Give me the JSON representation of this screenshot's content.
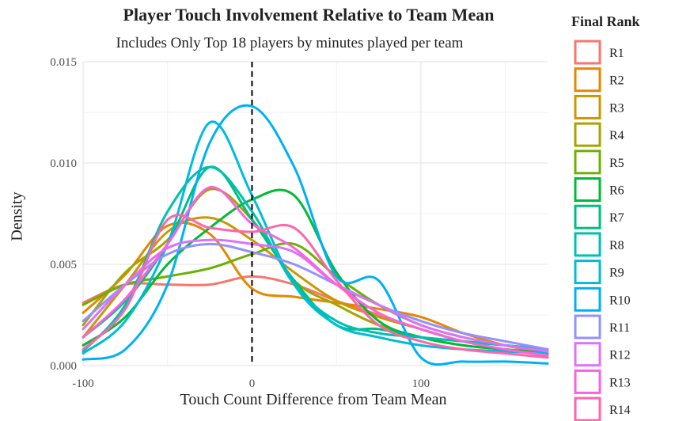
{
  "chart_data": {
    "type": "line",
    "title": "Player Touch Involvement Relative to Team Mean",
    "subtitle": "Includes Only Top 18 players by minutes played per team",
    "xlabel": "Touch Count Difference from Team Mean",
    "ylabel": "Density",
    "xlim": [
      -100,
      175
    ],
    "ylim": [
      0,
      0.015
    ],
    "xticks": [
      -100,
      0,
      100
    ],
    "xtick_labels": [
      "-100",
      "0",
      "100"
    ],
    "yticks": [
      0,
      0.005,
      0.01,
      0.015
    ],
    "ytick_labels": [
      "0.000",
      "0.005",
      "0.010",
      "0.015"
    ],
    "reference_line_x": 0,
    "grid": true,
    "legend_title": "Final Rank",
    "legend_position": "right",
    "x": [
      -100,
      -75,
      -50,
      -25,
      0,
      25,
      50,
      75,
      100,
      125,
      150,
      175
    ],
    "series": [
      {
        "name": "R1",
        "color": "#F8766D",
        "values": [
          0.0031,
          0.004,
          0.004,
          0.004,
          0.0044,
          0.004,
          0.0032,
          0.0025,
          0.0018,
          0.0012,
          0.0008,
          0.0005
        ]
      },
      {
        "name": "R2",
        "color": "#E58700",
        "values": [
          0.0026,
          0.0045,
          0.0069,
          0.0065,
          0.0038,
          0.0034,
          0.0031,
          0.0028,
          0.0024,
          0.0016,
          0.001,
          0.0006
        ]
      },
      {
        "name": "R3",
        "color": "#C99800",
        "values": [
          0.0014,
          0.004,
          0.0066,
          0.0073,
          0.0062,
          0.0046,
          0.0032,
          0.0024,
          0.0018,
          0.0012,
          0.0008,
          0.0005
        ]
      },
      {
        "name": "R4",
        "color": "#A3A500",
        "values": [
          0.002,
          0.0046,
          0.0062,
          0.0087,
          0.0072,
          0.0042,
          0.003,
          0.002,
          0.0014,
          0.001,
          0.0008,
          0.0006
        ]
      },
      {
        "name": "R5",
        "color": "#6BB100",
        "values": [
          0.003,
          0.004,
          0.0044,
          0.0048,
          0.0055,
          0.006,
          0.0044,
          0.003,
          0.002,
          0.0014,
          0.001,
          0.0007
        ]
      },
      {
        "name": "R6",
        "color": "#00BA38",
        "values": [
          0.001,
          0.0024,
          0.005,
          0.0068,
          0.0082,
          0.0084,
          0.0046,
          0.0022,
          0.0014,
          0.001,
          0.0008,
          0.0006
        ]
      },
      {
        "name": "R7",
        "color": "#00BF7D",
        "values": [
          0.0014,
          0.0032,
          0.006,
          0.0098,
          0.0072,
          0.0042,
          0.002,
          0.0018,
          0.0014,
          0.0012,
          0.001,
          0.0008
        ]
      },
      {
        "name": "R8",
        "color": "#00C0AF",
        "values": [
          0.0007,
          0.003,
          0.0076,
          0.0098,
          0.0076,
          0.004,
          0.0022,
          0.0016,
          0.0014,
          0.0012,
          0.001,
          0.0008
        ]
      },
      {
        "name": "R9",
        "color": "#00BCD8",
        "values": [
          0.0006,
          0.0022,
          0.006,
          0.012,
          0.0084,
          0.004,
          0.002,
          0.0014,
          0.001,
          0.0008,
          0.0007,
          0.0006
        ]
      },
      {
        "name": "R10",
        "color": "#00B0F6",
        "values": [
          0.0003,
          0.0008,
          0.004,
          0.011,
          0.0128,
          0.0098,
          0.0044,
          0.0042,
          0.0004,
          0.0002,
          0.0002,
          0.0001
        ]
      },
      {
        "name": "R11",
        "color": "#9590FF",
        "values": [
          0.0022,
          0.004,
          0.0055,
          0.006,
          0.0056,
          0.005,
          0.004,
          0.003,
          0.0022,
          0.0016,
          0.0012,
          0.0008
        ]
      },
      {
        "name": "R12",
        "color": "#DC71FA",
        "values": [
          0.0018,
          0.004,
          0.0058,
          0.0062,
          0.006,
          0.0056,
          0.004,
          0.003,
          0.002,
          0.0014,
          0.001,
          0.0007
        ]
      },
      {
        "name": "R13",
        "color": "#F763E0",
        "values": [
          0.0014,
          0.0033,
          0.006,
          0.0088,
          0.007,
          0.0058,
          0.004,
          0.0026,
          0.0018,
          0.0012,
          0.0008,
          0.0005
        ]
      },
      {
        "name": "R14",
        "color": "#FF65AC",
        "values": [
          0.0008,
          0.0028,
          0.0072,
          0.0068,
          0.0066,
          0.0068,
          0.0042,
          0.002,
          0.0012,
          0.0008,
          0.0006,
          0.0004
        ]
      }
    ]
  }
}
